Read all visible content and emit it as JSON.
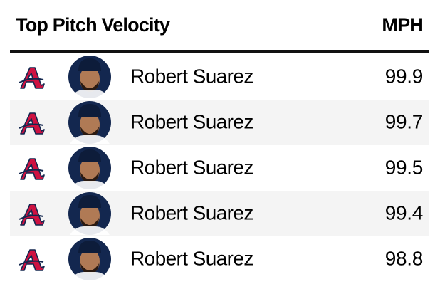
{
  "header": {
    "title": "Top Pitch Velocity",
    "unit": "MPH"
  },
  "rows": [
    {
      "name": "Robert Suarez",
      "value": 99.9
    },
    {
      "name": "Robert Suarez",
      "value": 99.7
    },
    {
      "name": "Robert Suarez",
      "value": 99.5
    },
    {
      "name": "Robert Suarez",
      "value": 99.4
    },
    {
      "name": "Robert Suarez",
      "value": 98.8
    }
  ]
}
